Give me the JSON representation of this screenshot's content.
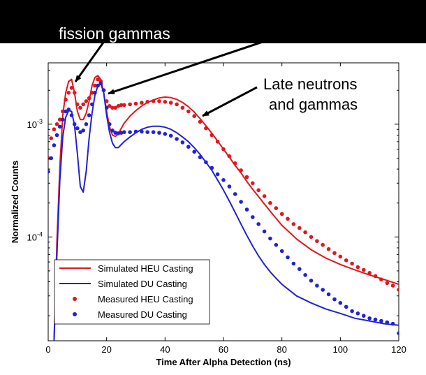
{
  "banner": {
    "text": "fission gammas"
  },
  "annotations": {
    "late_line1": "Late neutrons",
    "late_line2": "and gammas"
  },
  "chart_data": {
    "type": "line",
    "title": "",
    "xlabel": "Time After Alpha Detection (ns)",
    "ylabel": "Normalized Counts",
    "xlim": [
      0,
      120
    ],
    "ylim": [
      1.2e-05,
      0.0035
    ],
    "y_scale": "log",
    "xticks": [
      0,
      20,
      40,
      60,
      80,
      100,
      120
    ],
    "yticks": [
      {
        "value": 0.001,
        "base": "10",
        "exp": "-3"
      },
      {
        "value": 0.0001,
        "base": "10",
        "exp": "-4"
      }
    ],
    "grid": false,
    "legend_position": "bottom-left",
    "series": [
      {
        "name": "Simulated HEU Casting",
        "style": "line",
        "color": "#e3161b",
        "x": [
          2,
          3,
          4,
          5,
          6,
          7,
          8,
          9,
          10,
          11,
          12,
          13,
          14,
          15,
          16,
          17,
          18,
          19,
          20,
          21,
          22,
          23,
          24,
          25,
          26,
          28,
          30,
          32,
          34,
          36,
          38,
          40,
          42,
          44,
          46,
          48,
          50,
          52,
          54,
          56,
          58,
          60,
          62,
          64,
          66,
          68,
          70,
          72,
          74,
          76,
          78,
          80,
          85,
          90,
          95,
          100,
          105,
          110,
          115,
          120
        ],
        "y": [
          1.2e-05,
          9e-05,
          0.00042,
          0.0012,
          0.0019,
          0.0024,
          0.0025,
          0.0019,
          0.0013,
          0.0011,
          0.0011,
          0.00125,
          0.0016,
          0.0022,
          0.0026,
          0.0027,
          0.0025,
          0.0019,
          0.0013,
          0.00095,
          0.0008,
          0.00078,
          0.00082,
          0.00092,
          0.00102,
          0.00118,
          0.00132,
          0.00145,
          0.00156,
          0.00164,
          0.00171,
          0.00174,
          0.00172,
          0.00166,
          0.00156,
          0.00143,
          0.00128,
          0.00112,
          0.00097,
          0.00083,
          0.00071,
          0.0006,
          0.00051,
          0.00043,
          0.00037,
          0.00031,
          0.000265,
          0.000228,
          0.000196,
          0.000169,
          0.000146,
          0.000127,
          9.6e-05,
          7.7e-05,
          6.5e-05,
          5.7e-05,
          5.1e-05,
          4.6e-05,
          4.2e-05,
          3.8e-05
        ]
      },
      {
        "name": "Simulated DU Casting",
        "style": "line",
        "color": "#2121d9",
        "x": [
          2,
          3,
          4,
          5,
          6,
          7,
          8,
          9,
          10,
          11,
          12,
          13,
          14,
          15,
          16,
          17,
          18,
          19,
          20,
          21,
          22,
          23,
          24,
          25,
          26,
          28,
          30,
          32,
          34,
          36,
          38,
          40,
          42,
          44,
          46,
          48,
          50,
          52,
          54,
          56,
          58,
          60,
          62,
          64,
          66,
          68,
          70,
          72,
          74,
          76,
          78,
          80,
          85,
          90,
          95,
          100,
          105,
          110,
          115,
          120
        ],
        "y": [
          1.2e-05,
          7e-05,
          0.00032,
          0.00078,
          0.00115,
          0.00132,
          0.0013,
          0.00098,
          0.00055,
          0.00028,
          0.00025,
          0.00038,
          0.00075,
          0.00125,
          0.0018,
          0.0022,
          0.0023,
          0.0019,
          0.0012,
          0.00085,
          0.00068,
          0.00062,
          0.00062,
          0.00066,
          0.0007,
          0.00077,
          0.00084,
          0.0009,
          0.00094,
          0.00096,
          0.00096,
          0.00094,
          0.0009,
          0.00084,
          0.00077,
          0.0007,
          0.00062,
          0.00054,
          0.00046,
          0.00039,
          0.00032,
          0.00026,
          0.000208,
          0.000165,
          0.00013,
          0.000103,
          8.3e-05,
          6.8e-05,
          5.7e-05,
          4.9e-05,
          4.3e-05,
          3.8e-05,
          3e-05,
          2.6e-05,
          2.3e-05,
          2.1e-05,
          1.9e-05,
          1.8e-05,
          1.7e-05,
          1.65e-05
        ]
      },
      {
        "name": "Measured HEU Casting",
        "style": "markers",
        "color": "#e3161b",
        "x": [
          0,
          1,
          2,
          3,
          4,
          5,
          6,
          7,
          8,
          9,
          10,
          11,
          12,
          13,
          14,
          15,
          16,
          17,
          18,
          19,
          20,
          21,
          22,
          23,
          24,
          25,
          26,
          28,
          30,
          32,
          34,
          36,
          38,
          40,
          42,
          44,
          46,
          48,
          50,
          52,
          54,
          56,
          58,
          60,
          62,
          64,
          66,
          68,
          70,
          72,
          74,
          76,
          78,
          80,
          82,
          84,
          86,
          88,
          90,
          92,
          94,
          96,
          98,
          100,
          102,
          104,
          106,
          108,
          110,
          112,
          114,
          116,
          118,
          120
        ],
        "y": [
          0.0005,
          0.00075,
          0.0009,
          0.001,
          0.0011,
          0.0013,
          0.00165,
          0.0019,
          0.0021,
          0.0019,
          0.0015,
          0.0014,
          0.0015,
          0.0016,
          0.0017,
          0.0019,
          0.0022,
          0.0025,
          0.0024,
          0.002,
          0.0016,
          0.00145,
          0.0014,
          0.0014,
          0.00145,
          0.00148,
          0.00148,
          0.0015,
          0.00152,
          0.00155,
          0.00158,
          0.0016,
          0.0016,
          0.00158,
          0.00155,
          0.0015,
          0.0014,
          0.0013,
          0.00118,
          0.00105,
          0.00092,
          0.0008,
          0.0007,
          0.0006,
          0.00052,
          0.00045,
          0.00039,
          0.00034,
          0.0003,
          0.00026,
          0.00023,
          0.0002,
          0.00018,
          0.00016,
          0.000145,
          0.00013,
          0.00012,
          0.00011,
          0.0001,
          9.2e-05,
          8.5e-05,
          7.8e-05,
          7.2e-05,
          6.7e-05,
          6.2e-05,
          5.8e-05,
          5.4e-05,
          5.1e-05,
          4.8e-05,
          4.5e-05,
          4.2e-05,
          3.9e-05,
          3.7e-05,
          3.4e-05
        ]
      },
      {
        "name": "Measured DU Casting",
        "style": "markers",
        "color": "#2121d9",
        "x": [
          0,
          1,
          2,
          3,
          4,
          5,
          6,
          7,
          8,
          9,
          10,
          11,
          12,
          13,
          14,
          15,
          16,
          17,
          18,
          19,
          20,
          21,
          22,
          23,
          24,
          25,
          26,
          28,
          30,
          32,
          34,
          36,
          38,
          40,
          42,
          44,
          46,
          48,
          50,
          52,
          54,
          56,
          58,
          60,
          62,
          64,
          66,
          68,
          70,
          72,
          74,
          76,
          78,
          80,
          82,
          84,
          86,
          88,
          90,
          92,
          94,
          96,
          98,
          100,
          102,
          104,
          106,
          108,
          110,
          112,
          114,
          116,
          118,
          120
        ],
        "y": [
          0.00038,
          0.0005,
          0.00065,
          0.0008,
          0.00095,
          0.0011,
          0.0013,
          0.00135,
          0.0012,
          0.001,
          0.00092,
          0.00085,
          0.00088,
          0.001,
          0.0012,
          0.0015,
          0.0019,
          0.0022,
          0.0023,
          0.002,
          0.0014,
          0.001,
          0.00088,
          0.00084,
          0.00083,
          0.00084,
          0.00085,
          0.00085,
          0.00086,
          0.00086,
          0.00085,
          0.00085,
          0.00084,
          0.00082,
          0.00079,
          0.00074,
          0.00069,
          0.00063,
          0.00057,
          0.00051,
          0.00046,
          0.00041,
          0.00036,
          0.00032,
          0.00028,
          0.00024,
          0.000205,
          0.000175,
          0.00015,
          0.00013,
          0.000112,
          9.7e-05,
          8.5e-05,
          7.5e-05,
          6.6e-05,
          5.8e-05,
          5.2e-05,
          4.6e-05,
          4.1e-05,
          3.7e-05,
          3.4e-05,
          3.1e-05,
          2.8e-05,
          2.6e-05,
          2.4e-05,
          2.2e-05,
          2.1e-05,
          2e-05,
          1.9e-05,
          1.85e-05,
          1.8e-05,
          1.75e-05,
          1.7e-05,
          1.4e-05
        ]
      }
    ]
  }
}
